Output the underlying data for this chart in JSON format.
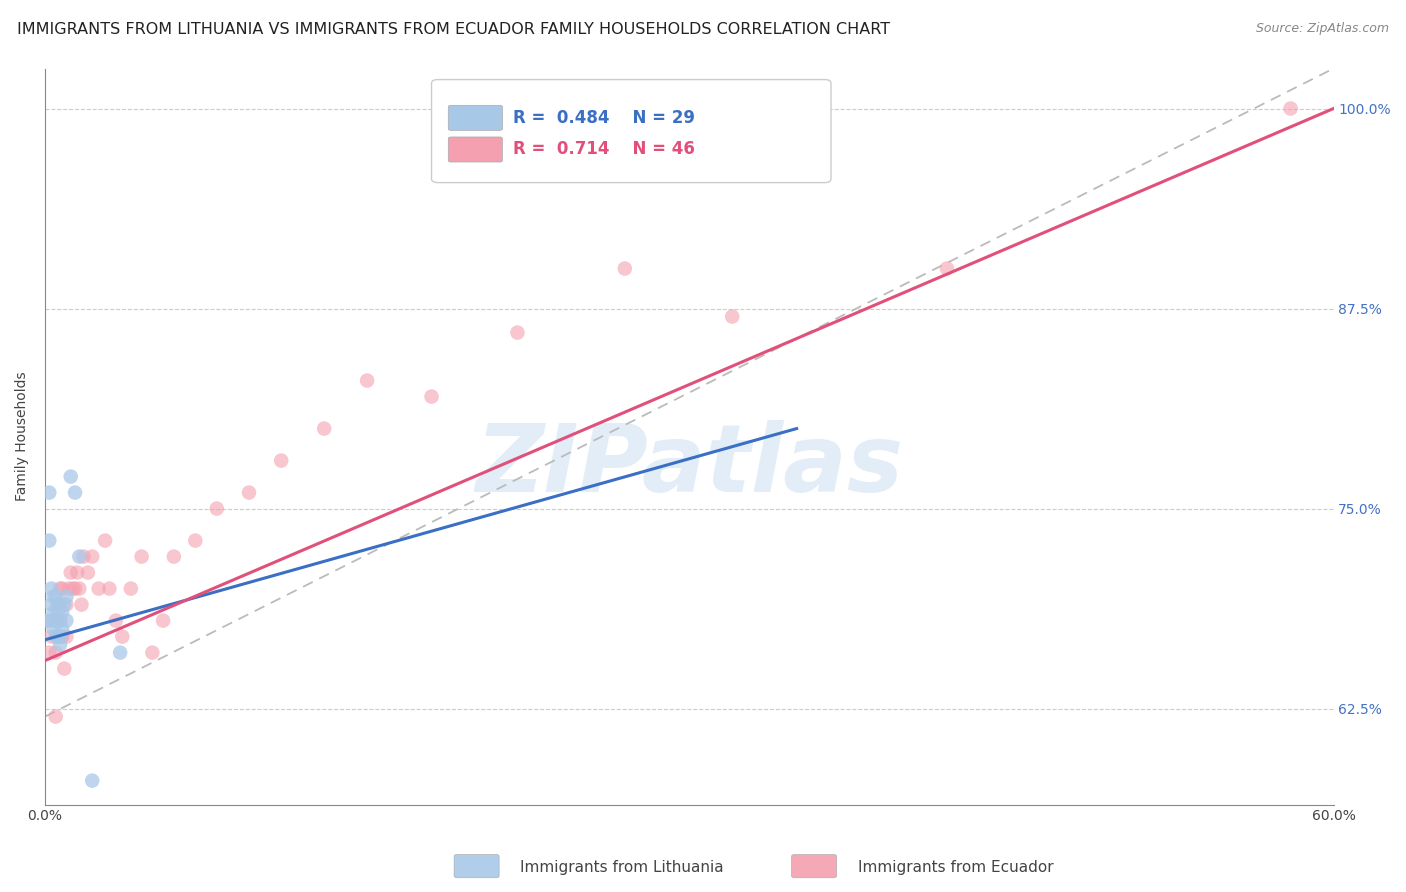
{
  "title": "IMMIGRANTS FROM LITHUANIA VS IMMIGRANTS FROM ECUADOR FAMILY HOUSEHOLDS CORRELATION CHART",
  "source": "Source: ZipAtlas.com",
  "ylabel": "Family Households",
  "legend_entries": [
    "Immigrants from Lithuania",
    "Immigrants from Ecuador"
  ],
  "r_lithuania": 0.484,
  "n_lithuania": 29,
  "r_ecuador": 0.714,
  "n_ecuador": 46,
  "xlim": [
    0.0,
    0.6
  ],
  "ylim": [
    0.565,
    1.025
  ],
  "yticks": [
    0.625,
    0.75,
    0.875,
    1.0
  ],
  "ytick_labels": [
    "62.5%",
    "75.0%",
    "87.5%",
    "100.0%"
  ],
  "xticks": [
    0.0,
    0.1,
    0.2,
    0.3,
    0.4,
    0.5,
    0.6
  ],
  "xtick_labels": [
    "0.0%",
    "",
    "",
    "",
    "",
    "",
    "60.0%"
  ],
  "color_lithuania": "#a8c8e8",
  "color_ecuador": "#f4a0b0",
  "color_line_lithuania": "#3a6fc4",
  "color_line_ecuador": "#e0507a",
  "color_ref_line": "#bbbbbb",
  "background_color": "#ffffff",
  "watermark": "ZIPatlas",
  "title_fontsize": 11.5,
  "axis_label_fontsize": 10,
  "tick_fontsize": 10,
  "legend_fontsize": 12,
  "lithuania_x": [
    0.001,
    0.002,
    0.002,
    0.003,
    0.003,
    0.003,
    0.004,
    0.004,
    0.004,
    0.005,
    0.005,
    0.005,
    0.006,
    0.006,
    0.006,
    0.007,
    0.007,
    0.007,
    0.007,
    0.008,
    0.008,
    0.009,
    0.01,
    0.01,
    0.012,
    0.014,
    0.016,
    0.022,
    0.035
  ],
  "lithuania_y": [
    0.68,
    0.76,
    0.73,
    0.68,
    0.69,
    0.7,
    0.675,
    0.685,
    0.695,
    0.67,
    0.68,
    0.695,
    0.67,
    0.685,
    0.69,
    0.665,
    0.67,
    0.68,
    0.69,
    0.675,
    0.685,
    0.69,
    0.68,
    0.695,
    0.77,
    0.76,
    0.72,
    0.58,
    0.66
  ],
  "ecuador_x": [
    0.002,
    0.003,
    0.004,
    0.005,
    0.005,
    0.006,
    0.006,
    0.007,
    0.007,
    0.008,
    0.008,
    0.009,
    0.01,
    0.01,
    0.011,
    0.012,
    0.013,
    0.014,
    0.015,
    0.016,
    0.017,
    0.018,
    0.02,
    0.022,
    0.025,
    0.028,
    0.03,
    0.033,
    0.036,
    0.04,
    0.045,
    0.05,
    0.055,
    0.06,
    0.07,
    0.08,
    0.095,
    0.11,
    0.13,
    0.15,
    0.18,
    0.22,
    0.27,
    0.32,
    0.42,
    0.58
  ],
  "ecuador_y": [
    0.66,
    0.67,
    0.68,
    0.62,
    0.66,
    0.67,
    0.69,
    0.68,
    0.7,
    0.67,
    0.7,
    0.65,
    0.69,
    0.67,
    0.7,
    0.71,
    0.7,
    0.7,
    0.71,
    0.7,
    0.69,
    0.72,
    0.71,
    0.72,
    0.7,
    0.73,
    0.7,
    0.68,
    0.67,
    0.7,
    0.72,
    0.66,
    0.68,
    0.72,
    0.73,
    0.75,
    0.76,
    0.78,
    0.8,
    0.83,
    0.82,
    0.86,
    0.9,
    0.87,
    0.9,
    1.0
  ],
  "line_lith_x0": 0.0,
  "line_lith_y0": 0.668,
  "line_lith_x1": 0.35,
  "line_lith_y1": 0.8,
  "line_ecu_x0": 0.0,
  "line_ecu_y0": 0.655,
  "line_ecu_x1": 0.6,
  "line_ecu_y1": 1.0
}
